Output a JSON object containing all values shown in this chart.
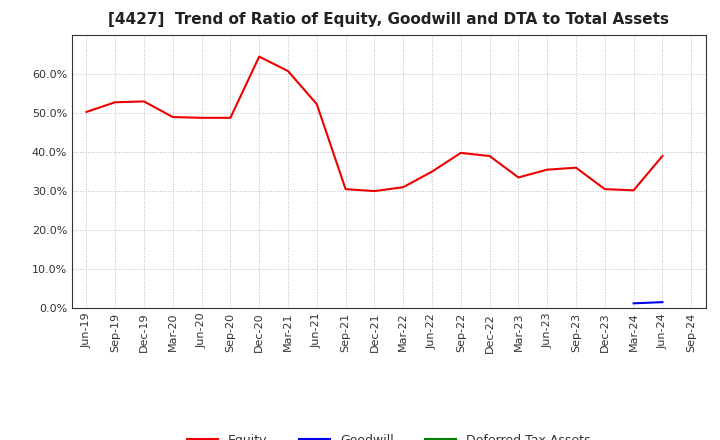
{
  "title": "[4427]  Trend of Ratio of Equity, Goodwill and DTA to Total Assets",
  "x_labels": [
    "Jun-19",
    "Sep-19",
    "Dec-19",
    "Mar-20",
    "Jun-20",
    "Sep-20",
    "Dec-20",
    "Mar-21",
    "Jun-21",
    "Sep-21",
    "Dec-21",
    "Mar-22",
    "Jun-22",
    "Sep-22",
    "Dec-22",
    "Mar-23",
    "Jun-23",
    "Sep-23",
    "Dec-23",
    "Mar-24",
    "Jun-24",
    "Sep-24"
  ],
  "equity": [
    0.503,
    0.528,
    0.53,
    0.49,
    0.488,
    0.488,
    0.645,
    0.608,
    0.523,
    0.305,
    0.3,
    0.31,
    0.35,
    0.398,
    0.39,
    0.335,
    0.355,
    0.36,
    0.305,
    0.302,
    0.39,
    null
  ],
  "goodwill": [
    null,
    null,
    null,
    null,
    null,
    null,
    null,
    null,
    null,
    null,
    null,
    null,
    null,
    null,
    null,
    null,
    null,
    null,
    null,
    0.012,
    0.015,
    null
  ],
  "dta": [
    null,
    null,
    null,
    null,
    null,
    null,
    null,
    null,
    null,
    null,
    null,
    null,
    null,
    null,
    null,
    null,
    null,
    null,
    null,
    null,
    null,
    null
  ],
  "equity_color": "#EE0000",
  "goodwill_color": "#0000EE",
  "dta_color": "#008000",
  "ylim": [
    0.0,
    0.7
  ],
  "yticks": [
    0.0,
    0.1,
    0.2,
    0.3,
    0.4,
    0.5,
    0.6
  ],
  "background_color": "#FFFFFF",
  "grid_color": "#BBBBBB",
  "title_fontsize": 11,
  "tick_fontsize": 8,
  "legend_fontsize": 9
}
